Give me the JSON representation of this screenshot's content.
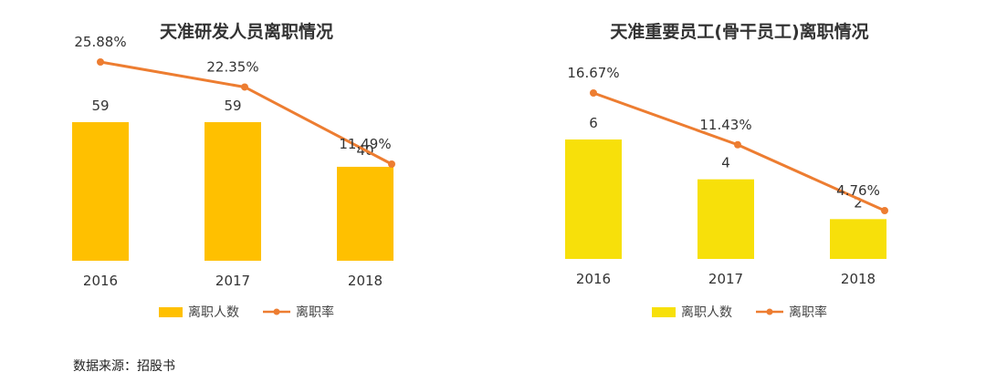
{
  "source": "数据来源：招股书",
  "chart_data": [
    {
      "type": "bar",
      "title": "天准研发人员离职情况",
      "categories": [
        "2016",
        "2017",
        "2018"
      ],
      "series": [
        {
          "name": "离职人数",
          "kind": "bar",
          "values": [
            59,
            59,
            40
          ],
          "labels": [
            "59",
            "59",
            "40"
          ],
          "color": "#FFC000"
        },
        {
          "name": "离职率",
          "kind": "line",
          "values": [
            25.88,
            22.35,
            11.49
          ],
          "labels": [
            "25.88%",
            "22.35%",
            "11.49%"
          ],
          "color": "#ED7D31"
        }
      ],
      "legend": "bottom",
      "grid": false
    },
    {
      "type": "bar",
      "title": "天准重要员工(骨干员工)离职情况",
      "categories": [
        "2016",
        "2017",
        "2018"
      ],
      "series": [
        {
          "name": "离职人数",
          "kind": "bar",
          "values": [
            6,
            4,
            2
          ],
          "labels": [
            "6",
            "4",
            "2"
          ],
          "color": "#F7E00A"
        },
        {
          "name": "离职率",
          "kind": "line",
          "values": [
            16.67,
            11.43,
            4.76
          ],
          "labels": [
            "16.67%",
            "11.43%",
            "4.76%"
          ],
          "color": "#ED7D31"
        }
      ],
      "legend": "bottom",
      "grid": false
    }
  ]
}
